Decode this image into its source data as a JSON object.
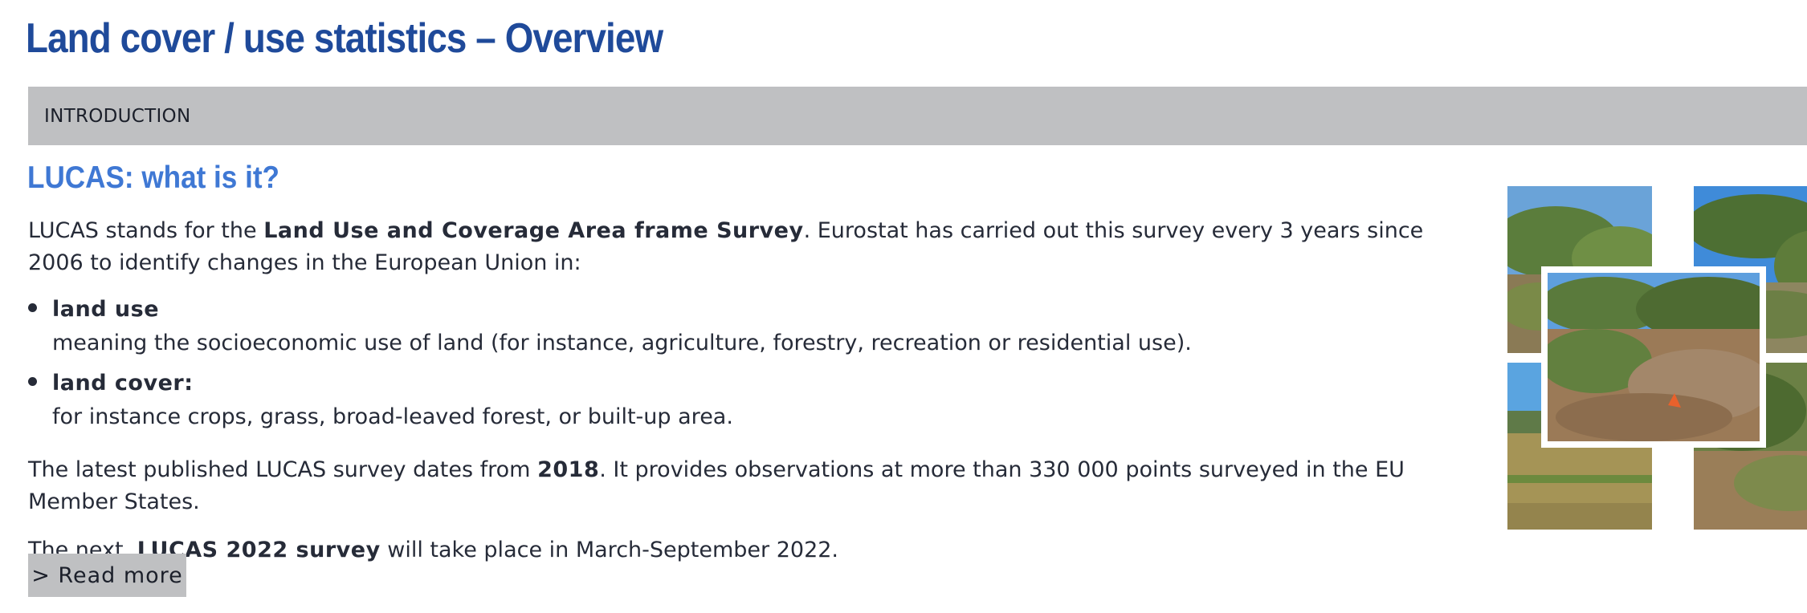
{
  "page": {
    "title": "Land cover / use statistics – Overview",
    "section_label": "INTRODUCTION",
    "subheading": "LUCAS: what is it?"
  },
  "intro": {
    "part1": "LUCAS stands for the ",
    "bold": "Land Use and Coverage Area frame Survey",
    "part2": ". Eurostat has carried out this survey every 3 years since 2006 to identify changes in the European Union in:"
  },
  "list": [
    {
      "term": "land use",
      "description": "meaning the socioeconomic use of land (for instance, agriculture, forestry, recreation or residential use)."
    },
    {
      "term": "land cover:",
      "description": "for instance crops, grass, broad-leaved forest, or built-up area."
    }
  ],
  "paragraph2": {
    "part1": "The latest published LUCAS survey dates from ",
    "bold": "2018",
    "part2": ". It provides observations at more than 330 000 points surveyed in the EU Member States."
  },
  "paragraph3": {
    "part1": "The next, ",
    "bold": "LUCAS 2022 survey",
    "part2": " will take place in March-September 2022."
  },
  "read_more_label": "> Read more",
  "colors": {
    "title": "#1f4a9a",
    "subheading": "#3f78d4",
    "section_bar": "#bfc0c2",
    "text": "#262b38"
  }
}
